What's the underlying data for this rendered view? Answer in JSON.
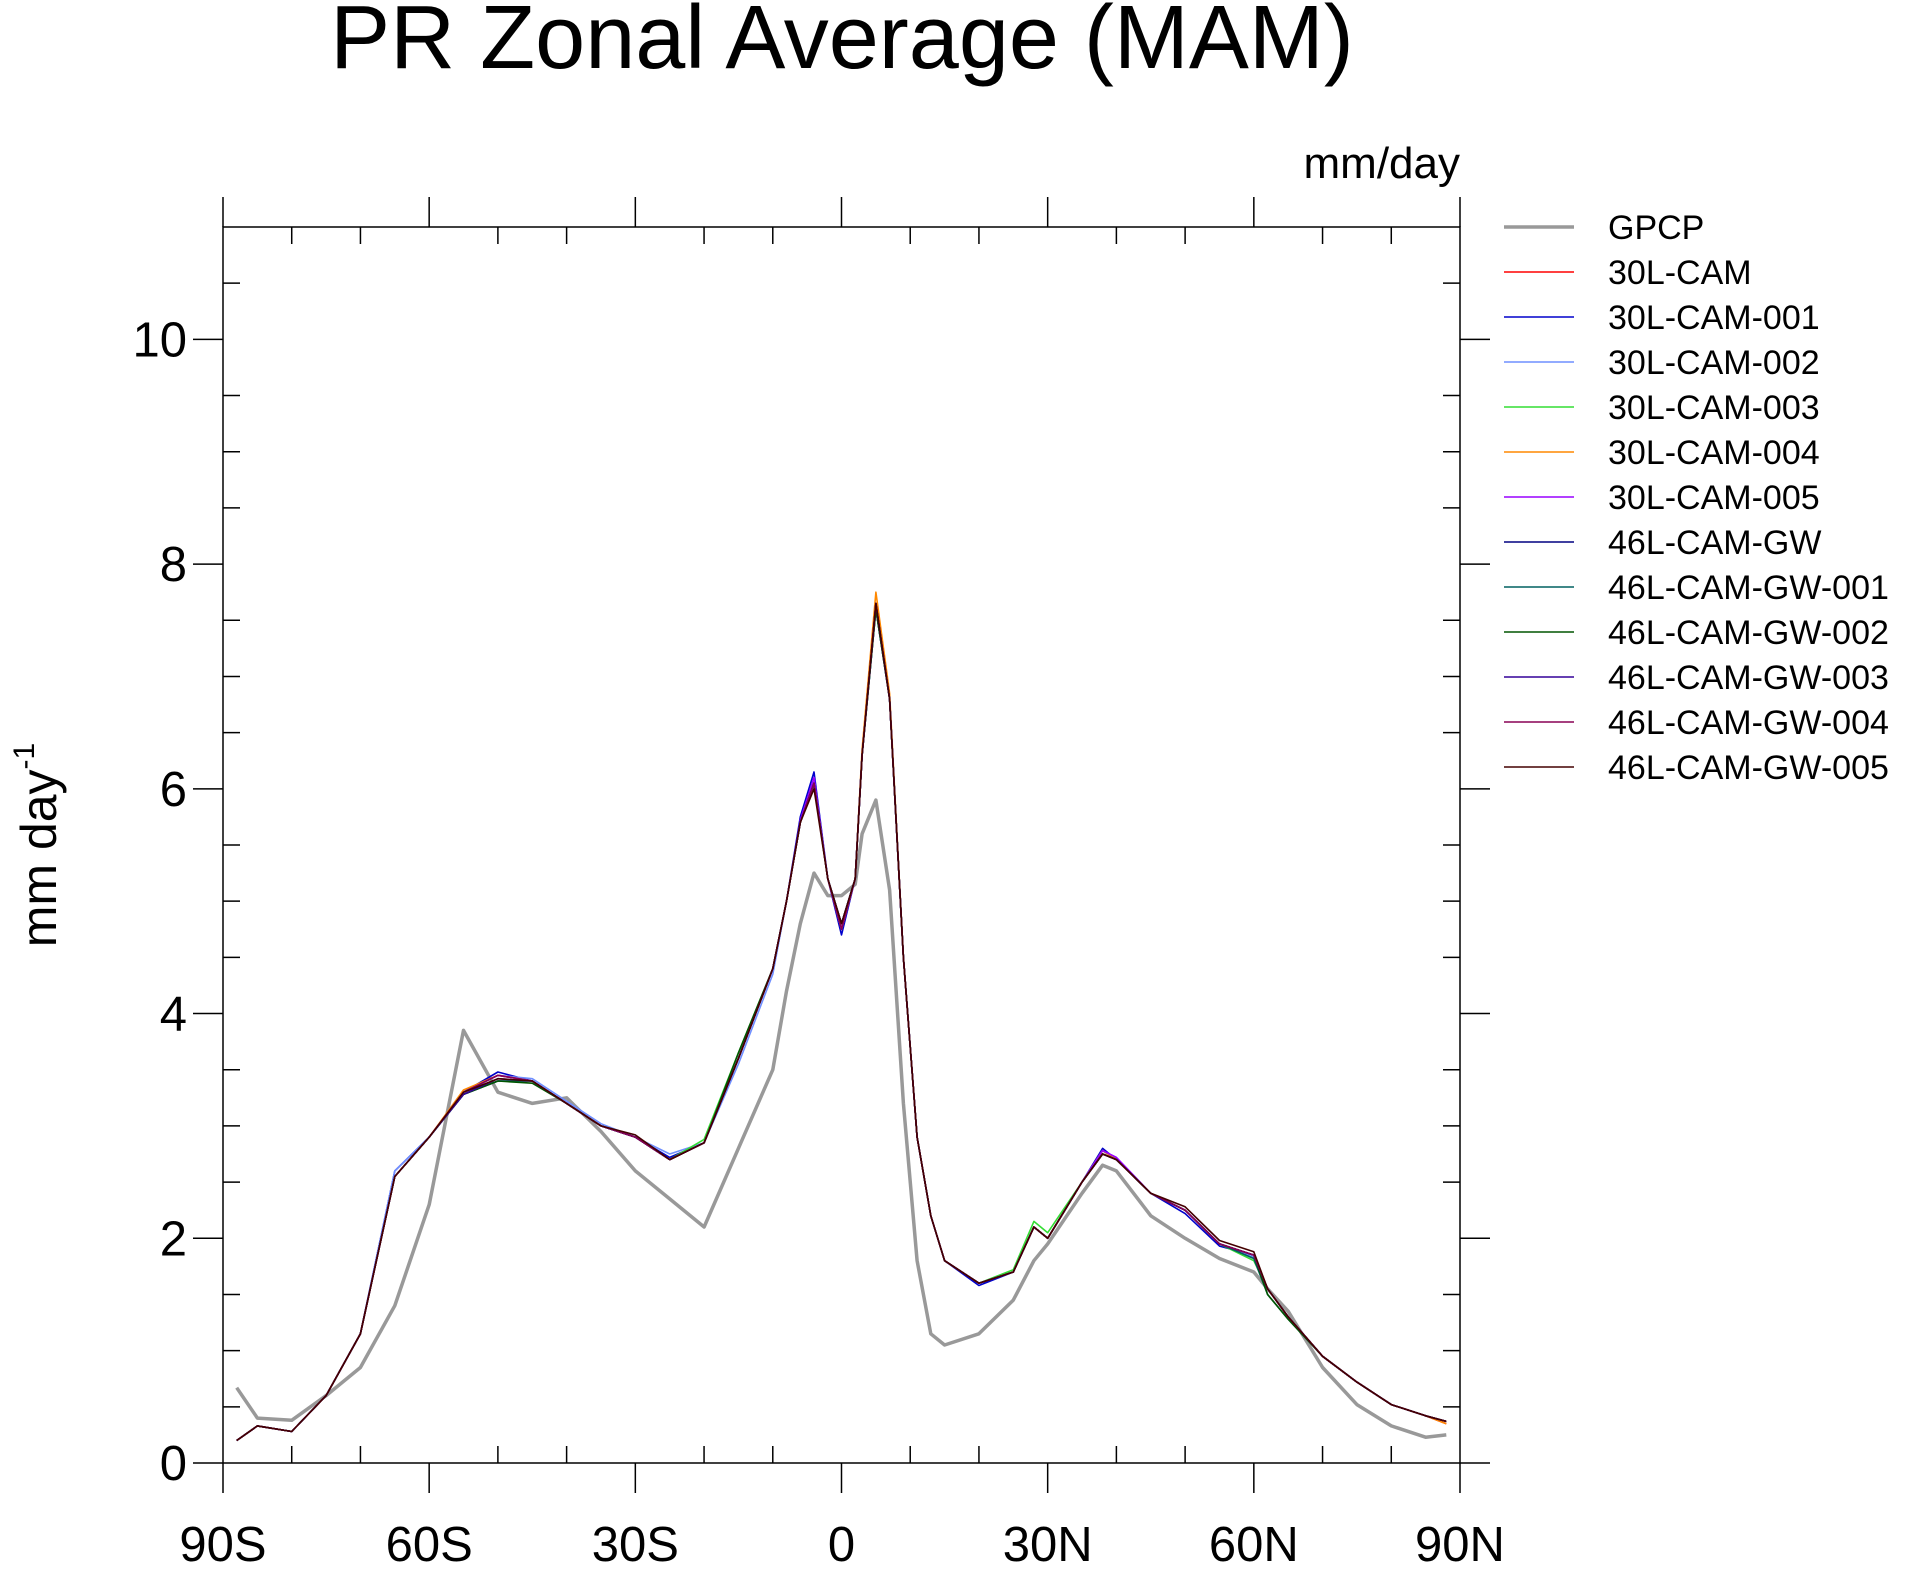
{
  "chart_data": {
    "type": "line",
    "title": "PR Zonal Average (MAM)",
    "units": "mm/day",
    "y_label": "mm day",
    "y_label_exponent": "-1",
    "x": [
      -88,
      -85,
      -80,
      -75,
      -70,
      -65,
      -60,
      -55,
      -50,
      -45,
      -40,
      -35,
      -30,
      -25,
      -20,
      -15,
      -10,
      -8,
      -6,
      -4,
      -2,
      0,
      2,
      3,
      5,
      7,
      9,
      11,
      13,
      15,
      20,
      25,
      28,
      30,
      35,
      38,
      40,
      45,
      50,
      55,
      60,
      62,
      65,
      70,
      75,
      80,
      85,
      88
    ],
    "xlim": [
      -90,
      90
    ],
    "xticks": [
      {
        "value": -90,
        "label": "90S"
      },
      {
        "value": -60,
        "label": "60S"
      },
      {
        "value": -30,
        "label": "30S"
      },
      0,
      {
        "value": 30,
        "label": "30N"
      },
      {
        "value": 60,
        "label": "60N"
      },
      {
        "value": 90,
        "label": "90N"
      }
    ],
    "xminorticks": [
      -80,
      -70,
      -50,
      -40,
      -20,
      -10,
      10,
      20,
      40,
      50,
      70,
      80
    ],
    "ylim": [
      0,
      11
    ],
    "yticks": [
      0,
      2,
      4,
      6,
      8,
      10
    ],
    "yminorticks": [
      0.5,
      1,
      1.5,
      2.5,
      3,
      3.5,
      4.5,
      5,
      5.5,
      6.5,
      7,
      7.5,
      8.5,
      9,
      9.5,
      10.5
    ],
    "series": [
      {
        "name": "GPCP",
        "color": "#999999",
        "values": [
          0.67,
          0.4,
          0.38,
          0.6,
          0.85,
          1.4,
          2.3,
          3.85,
          3.3,
          3.2,
          3.25,
          2.95,
          2.6,
          2.35,
          2.1,
          2.8,
          3.5,
          4.2,
          4.8,
          5.25,
          5.05,
          5.05,
          5.15,
          5.6,
          5.9,
          5.1,
          3.2,
          1.8,
          1.15,
          1.05,
          1.15,
          1.45,
          1.8,
          1.95,
          2.4,
          2.65,
          2.6,
          2.2,
          2.0,
          1.82,
          1.7,
          1.55,
          1.35,
          0.85,
          0.52,
          0.33,
          0.23,
          0.25
        ]
      },
      {
        "name": "30L-CAM",
        "color": "#ff0000",
        "values": [
          0.2,
          0.33,
          0.28,
          0.6,
          1.15,
          2.55,
          2.9,
          3.3,
          3.45,
          3.4,
          3.2,
          3.0,
          2.9,
          2.7,
          2.85,
          3.6,
          4.4,
          5.0,
          5.7,
          6.05,
          5.2,
          4.75,
          5.2,
          6.3,
          7.65,
          6.8,
          4.5,
          2.9,
          2.2,
          1.8,
          1.6,
          1.7,
          2.1,
          2.0,
          2.5,
          2.78,
          2.7,
          2.4,
          2.25,
          1.95,
          1.85,
          1.55,
          1.3,
          0.95,
          0.72,
          0.52,
          0.42,
          0.35
        ]
      },
      {
        "name": "30L-CAM-001",
        "color": "#0000cc",
        "values": [
          0.2,
          0.33,
          0.28,
          0.6,
          1.15,
          2.6,
          2.9,
          3.3,
          3.48,
          3.4,
          3.2,
          3.0,
          2.9,
          2.72,
          2.85,
          3.6,
          4.4,
          5.0,
          5.75,
          6.15,
          5.2,
          4.7,
          5.2,
          6.3,
          7.6,
          6.8,
          4.5,
          2.9,
          2.2,
          1.8,
          1.58,
          1.7,
          2.1,
          2.0,
          2.5,
          2.8,
          2.7,
          2.4,
          2.22,
          1.93,
          1.85,
          1.55,
          1.3,
          0.95,
          0.72,
          0.52,
          0.42,
          0.37
        ]
      },
      {
        "name": "30L-CAM-002",
        "color": "#6f8fff",
        "values": [
          0.2,
          0.33,
          0.28,
          0.6,
          1.15,
          2.6,
          2.9,
          3.3,
          3.45,
          3.42,
          3.22,
          3.02,
          2.9,
          2.75,
          2.85,
          3.55,
          4.35,
          5.0,
          5.7,
          6.1,
          5.2,
          4.75,
          5.2,
          6.3,
          7.6,
          6.8,
          4.5,
          2.9,
          2.2,
          1.8,
          1.6,
          1.7,
          2.1,
          2.0,
          2.5,
          2.78,
          2.7,
          2.4,
          2.25,
          1.95,
          1.83,
          1.55,
          1.3,
          0.95,
          0.72,
          0.52,
          0.42,
          0.37
        ]
      },
      {
        "name": "30L-CAM-003",
        "color": "#33dd33",
        "values": [
          0.2,
          0.33,
          0.28,
          0.6,
          1.15,
          2.55,
          2.9,
          3.3,
          3.45,
          3.4,
          3.2,
          3.0,
          2.9,
          2.7,
          2.88,
          3.65,
          4.4,
          5.0,
          5.7,
          6.05,
          5.2,
          4.75,
          5.2,
          6.3,
          7.6,
          6.8,
          4.5,
          2.9,
          2.2,
          1.8,
          1.6,
          1.72,
          2.15,
          2.05,
          2.5,
          2.78,
          2.7,
          2.4,
          2.25,
          1.95,
          1.8,
          1.55,
          1.3,
          0.95,
          0.72,
          0.52,
          0.42,
          0.37
        ]
      },
      {
        "name": "30L-CAM-004",
        "color": "#ff8800",
        "values": [
          0.2,
          0.33,
          0.28,
          0.6,
          1.15,
          2.55,
          2.9,
          3.32,
          3.45,
          3.4,
          3.2,
          3.0,
          2.9,
          2.7,
          2.85,
          3.6,
          4.4,
          5.0,
          5.7,
          6.05,
          5.2,
          4.75,
          5.2,
          6.35,
          7.75,
          6.85,
          4.5,
          2.9,
          2.2,
          1.8,
          1.6,
          1.7,
          2.1,
          2.0,
          2.5,
          2.78,
          2.7,
          2.4,
          2.25,
          1.95,
          1.85,
          1.55,
          1.3,
          0.95,
          0.72,
          0.52,
          0.42,
          0.35
        ]
      },
      {
        "name": "30L-CAM-005",
        "color": "#9900ff",
        "values": [
          0.2,
          0.33,
          0.28,
          0.6,
          1.15,
          2.55,
          2.9,
          3.3,
          3.45,
          3.4,
          3.2,
          3.0,
          2.9,
          2.7,
          2.85,
          3.6,
          4.4,
          5.0,
          5.72,
          6.1,
          5.2,
          4.75,
          5.2,
          6.3,
          7.6,
          6.8,
          4.5,
          2.9,
          2.2,
          1.8,
          1.6,
          1.7,
          2.1,
          2.0,
          2.5,
          2.78,
          2.72,
          2.4,
          2.25,
          1.95,
          1.85,
          1.55,
          1.3,
          0.95,
          0.72,
          0.52,
          0.42,
          0.37
        ]
      },
      {
        "name": "46L-CAM-GW",
        "color": "#000080",
        "values": [
          0.2,
          0.33,
          0.28,
          0.6,
          1.15,
          2.55,
          2.9,
          3.28,
          3.4,
          3.4,
          3.2,
          3.0,
          2.9,
          2.7,
          2.85,
          3.6,
          4.4,
          5.0,
          5.7,
          6.05,
          5.2,
          4.8,
          5.2,
          6.3,
          7.65,
          6.8,
          4.5,
          2.9,
          2.2,
          1.8,
          1.6,
          1.7,
          2.1,
          2.0,
          2.5,
          2.75,
          2.7,
          2.4,
          2.25,
          1.95,
          1.85,
          1.55,
          1.3,
          0.95,
          0.72,
          0.52,
          0.42,
          0.37
        ]
      },
      {
        "name": "46L-CAM-GW-001",
        "color": "#006060",
        "values": [
          0.2,
          0.33,
          0.28,
          0.6,
          1.15,
          2.55,
          2.9,
          3.28,
          3.4,
          3.4,
          3.2,
          3.0,
          2.9,
          2.7,
          2.85,
          3.6,
          4.4,
          5.0,
          5.7,
          6.05,
          5.2,
          4.8,
          5.2,
          6.3,
          7.6,
          6.8,
          4.5,
          2.9,
          2.2,
          1.8,
          1.6,
          1.7,
          2.1,
          2.0,
          2.5,
          2.75,
          2.7,
          2.4,
          2.25,
          1.95,
          1.82,
          1.5,
          1.28,
          0.95,
          0.72,
          0.52,
          0.42,
          0.37
        ]
      },
      {
        "name": "46L-CAM-GW-002",
        "color": "#005500",
        "values": [
          0.2,
          0.33,
          0.28,
          0.6,
          1.15,
          2.55,
          2.9,
          3.28,
          3.4,
          3.38,
          3.2,
          3.0,
          2.9,
          2.7,
          2.85,
          3.65,
          4.4,
          5.0,
          5.7,
          6.05,
          5.2,
          4.8,
          5.2,
          6.3,
          7.6,
          6.8,
          4.5,
          2.9,
          2.2,
          1.8,
          1.6,
          1.7,
          2.1,
          2.0,
          2.5,
          2.75,
          2.7,
          2.4,
          2.25,
          1.95,
          1.85,
          1.5,
          1.28,
          0.95,
          0.72,
          0.52,
          0.42,
          0.37
        ]
      },
      {
        "name": "46L-CAM-GW-003",
        "color": "#330099",
        "values": [
          0.2,
          0.33,
          0.28,
          0.6,
          1.15,
          2.55,
          2.9,
          3.28,
          3.42,
          3.4,
          3.2,
          3.0,
          2.9,
          2.7,
          2.85,
          3.6,
          4.4,
          5.0,
          5.7,
          6.05,
          5.2,
          4.8,
          5.2,
          6.3,
          7.65,
          6.8,
          4.5,
          2.9,
          2.2,
          1.8,
          1.6,
          1.7,
          2.1,
          2.0,
          2.5,
          2.75,
          2.7,
          2.4,
          2.25,
          1.95,
          1.85,
          1.55,
          1.3,
          0.95,
          0.72,
          0.52,
          0.42,
          0.37
        ]
      },
      {
        "name": "46L-CAM-GW-004",
        "color": "#880055",
        "values": [
          0.2,
          0.33,
          0.28,
          0.6,
          1.15,
          2.55,
          2.9,
          3.3,
          3.45,
          3.4,
          3.2,
          3.0,
          2.9,
          2.7,
          2.85,
          3.6,
          4.4,
          5.0,
          5.7,
          6.05,
          5.2,
          4.75,
          5.2,
          6.3,
          7.65,
          6.8,
          4.5,
          2.9,
          2.2,
          1.8,
          1.6,
          1.7,
          2.1,
          2.0,
          2.5,
          2.75,
          2.7,
          2.4,
          2.25,
          1.95,
          1.85,
          1.55,
          1.3,
          0.95,
          0.72,
          0.52,
          0.42,
          0.37
        ]
      },
      {
        "name": "46L-CAM-GW-005",
        "color": "#440000",
        "values": [
          0.2,
          0.33,
          0.28,
          0.6,
          1.15,
          2.55,
          2.9,
          3.3,
          3.42,
          3.4,
          3.2,
          3.0,
          2.92,
          2.7,
          2.85,
          3.6,
          4.4,
          5.0,
          5.7,
          6.0,
          5.2,
          4.8,
          5.2,
          6.3,
          7.65,
          6.8,
          4.5,
          2.9,
          2.2,
          1.8,
          1.6,
          1.7,
          2.1,
          2.0,
          2.5,
          2.75,
          2.7,
          2.4,
          2.28,
          1.98,
          1.88,
          1.55,
          1.3,
          0.95,
          0.72,
          0.52,
          0.42,
          0.37
        ]
      }
    ]
  }
}
